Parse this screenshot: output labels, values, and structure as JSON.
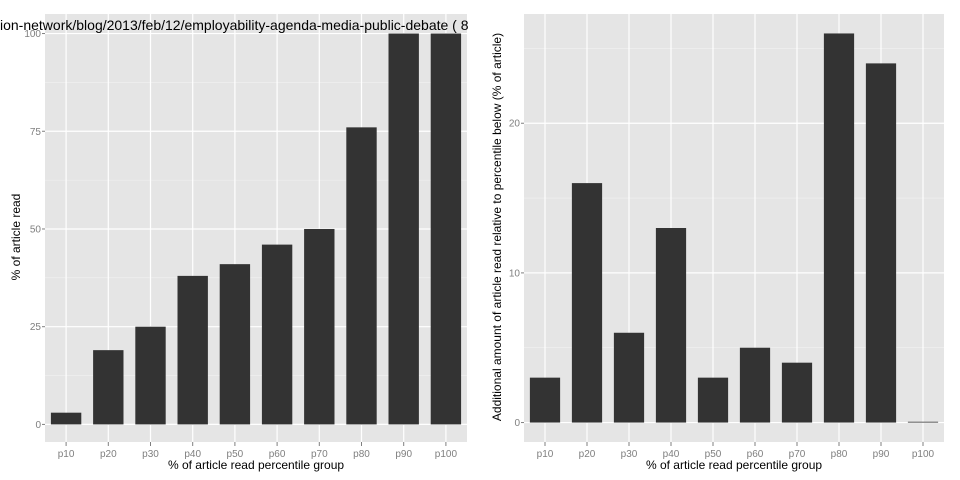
{
  "chart_data": [
    {
      "type": "bar",
      "title": "ion-network/blog/2013/feb/12/employability-agenda-media-public-debate ( 8",
      "xlabel": "% of article read percentile group",
      "ylabel": "% of article read",
      "categories": [
        "p10",
        "p20",
        "p30",
        "p40",
        "p50",
        "p60",
        "p70",
        "p80",
        "p90",
        "p100"
      ],
      "values": [
        3,
        19,
        25,
        38,
        41,
        46,
        50,
        76,
        100,
        100
      ],
      "ylim": [
        -4.5,
        105
      ],
      "yticks": [
        0,
        25,
        50,
        75,
        100
      ],
      "grid": true,
      "bar_color": "#333333",
      "panel_color": "#e5e5e5",
      "grid_color": "#ffffff"
    },
    {
      "type": "bar",
      "title": "",
      "xlabel": "% of article read percentile group",
      "ylabel": "Additional amount of article read relative to percentile below (% of article)",
      "categories": [
        "p10",
        "p20",
        "p30",
        "p40",
        "p50",
        "p60",
        "p70",
        "p80",
        "p90",
        "p100"
      ],
      "values": [
        3,
        16,
        6,
        13,
        3,
        5,
        4,
        26,
        24,
        0
      ],
      "ylim": [
        -1.3,
        27.3
      ],
      "yticks": [
        0,
        10,
        20
      ],
      "grid": true,
      "bar_color": "#333333",
      "panel_color": "#e5e5e5",
      "grid_color": "#ffffff"
    }
  ]
}
